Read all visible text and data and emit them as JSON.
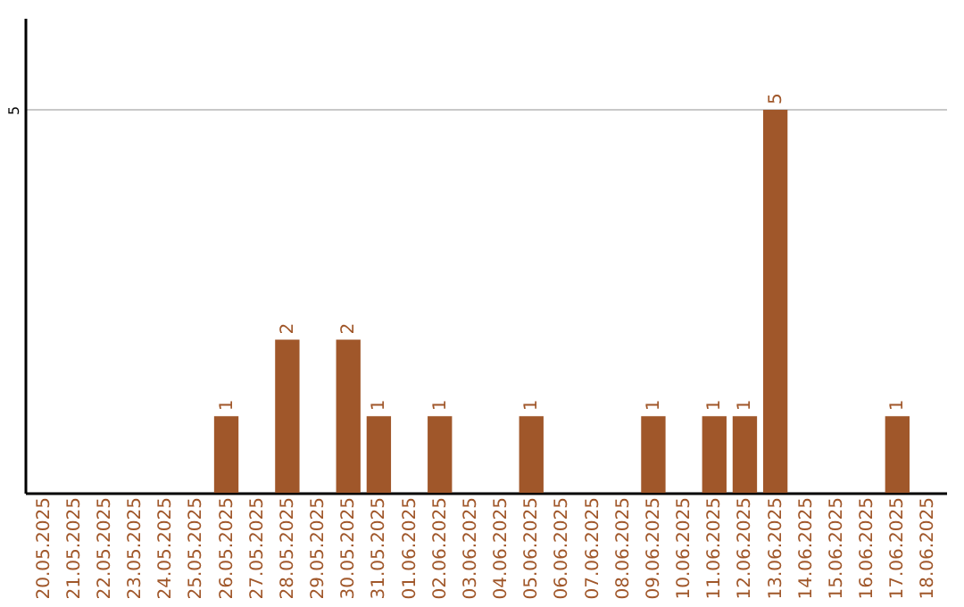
{
  "chart_data": {
    "type": "bar",
    "categories": [
      "20.05.2025",
      "21.05.2025",
      "22.05.2025",
      "23.05.2025",
      "24.05.2025",
      "25.05.2025",
      "26.05.2025",
      "27.05.2025",
      "28.05.2025",
      "29.05.2025",
      "30.05.2025",
      "31.05.2025",
      "01.06.2025",
      "02.06.2025",
      "03.06.2025",
      "04.06.2025",
      "05.06.2025",
      "06.06.2025",
      "07.06.2025",
      "08.06.2025",
      "09.06.2025",
      "10.06.2025",
      "11.06.2025",
      "12.06.2025",
      "13.06.2025",
      "14.06.2025",
      "15.06.2025",
      "16.06.2025",
      "17.06.2025",
      "18.06.2025"
    ],
    "values": [
      0,
      0,
      0,
      0,
      0,
      0,
      1,
      0,
      2,
      0,
      2,
      1,
      0,
      1,
      0,
      0,
      1,
      0,
      0,
      0,
      1,
      0,
      1,
      1,
      5,
      0,
      0,
      0,
      1,
      0
    ],
    "value_labels": [
      null,
      null,
      null,
      null,
      null,
      null,
      "1",
      null,
      "2",
      null,
      "2",
      "1",
      null,
      "1",
      null,
      null,
      "1",
      null,
      null,
      null,
      "1",
      null,
      "1",
      "1",
      "5",
      null,
      null,
      null,
      "1",
      null
    ],
    "color": "#a0572a",
    "ylim": [
      0,
      6.2
    ],
    "yticks": [
      5
    ],
    "grid": "y"
  }
}
